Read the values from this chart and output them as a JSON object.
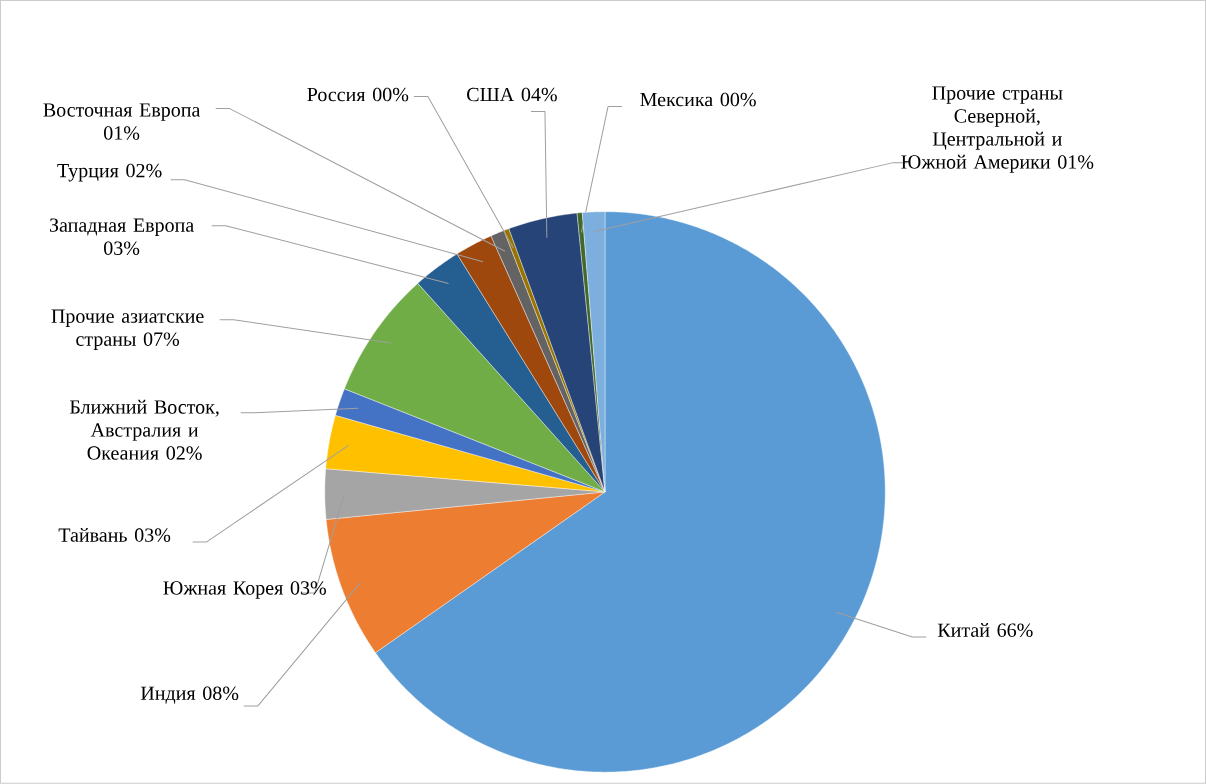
{
  "chart_data": {
    "type": "pie",
    "categories": [
      "Китай",
      "Индия",
      "Южная Корея",
      "Тайвань",
      "Ближний Восток, Австралия и Океания",
      "Прочие азиатские страны",
      "Западная Европа",
      "Турция",
      "Восточная Европа",
      "Россия",
      "США",
      "Мексика",
      "Прочие страны Северной, Центральной и Южной Америки"
    ],
    "values": [
      65.6,
      8.2,
      2.9,
      3.1,
      1.6,
      7.4,
      2.8,
      2.2,
      0.8,
      0.3,
      4.0,
      0.3,
      1.3
    ],
    "value_labels": [
      "66%",
      "08%",
      "03%",
      "03%",
      "02%",
      "07%",
      "03%",
      "02%",
      "01%",
      "00%",
      "04%",
      "00%",
      "01%"
    ],
    "colors": [
      "#5b9bd5",
      "#ed7d31",
      "#a5a5a5",
      "#ffc000",
      "#4472c4",
      "#70ad47",
      "#255e91",
      "#9e480e",
      "#636363",
      "#997300",
      "#264478",
      "#43682b",
      "#7cafdd"
    ]
  }
}
